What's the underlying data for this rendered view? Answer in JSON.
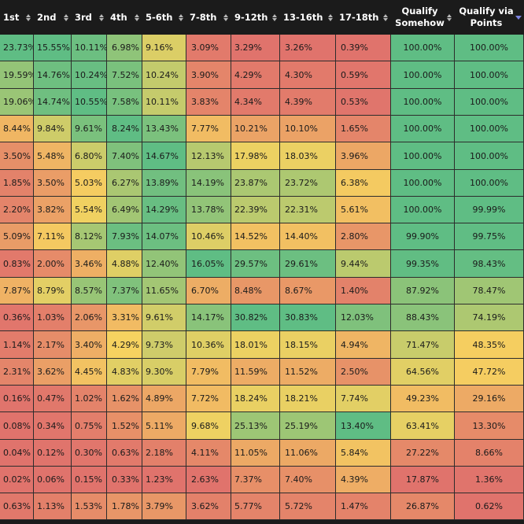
{
  "columns": [
    {
      "key": "1st",
      "label": "1st",
      "align": "left",
      "sort": "none"
    },
    {
      "key": "2nd",
      "label": "2nd",
      "align": "left",
      "sort": "none"
    },
    {
      "key": "3rd",
      "label": "3rd",
      "align": "left",
      "sort": "none"
    },
    {
      "key": "4th",
      "label": "4th",
      "align": "left",
      "sort": "none"
    },
    {
      "key": "5-6th",
      "label": "5-6th",
      "align": "left",
      "sort": "none"
    },
    {
      "key": "7-8th",
      "label": "7-8th",
      "align": "left",
      "sort": "none"
    },
    {
      "key": "9-12th",
      "label": "9-12th",
      "align": "left",
      "sort": "none"
    },
    {
      "key": "13-16th",
      "label": "13-16th",
      "align": "left",
      "sort": "none"
    },
    {
      "key": "17-18th",
      "label": "17-18th",
      "align": "left",
      "sort": "none"
    },
    {
      "key": "qualify-somehow",
      "label": "Qualify Somehow",
      "align": "center",
      "sort": "none"
    },
    {
      "key": "qualify-via-points",
      "label": "Qualify via Points",
      "align": "center",
      "sort": "desc"
    }
  ],
  "rows": [
    [
      "23.73%",
      "15.55%",
      "10.11%",
      "6.98%",
      "9.16%",
      "3.09%",
      "3.29%",
      "3.26%",
      "0.39%",
      "100.00%",
      "100.00%"
    ],
    [
      "19.59%",
      "14.76%",
      "10.24%",
      "7.52%",
      "10.24%",
      "3.90%",
      "4.29%",
      "4.30%",
      "0.59%",
      "100.00%",
      "100.00%"
    ],
    [
      "19.06%",
      "14.74%",
      "10.55%",
      "7.58%",
      "10.11%",
      "3.83%",
      "4.34%",
      "4.39%",
      "0.53%",
      "100.00%",
      "100.00%"
    ],
    [
      "8.44%",
      "9.84%",
      "9.61%",
      "8.24%",
      "13.43%",
      "7.77%",
      "10.21%",
      "10.10%",
      "1.65%",
      "100.00%",
      "100.00%"
    ],
    [
      "3.50%",
      "5.48%",
      "6.80%",
      "7.40%",
      "14.67%",
      "12.13%",
      "17.98%",
      "18.03%",
      "3.96%",
      "100.00%",
      "100.00%"
    ],
    [
      "1.85%",
      "3.50%",
      "5.03%",
      "6.27%",
      "13.89%",
      "14.19%",
      "23.87%",
      "23.72%",
      "6.38%",
      "100.00%",
      "100.00%"
    ],
    [
      "2.20%",
      "3.82%",
      "5.54%",
      "6.49%",
      "14.29%",
      "13.78%",
      "22.39%",
      "22.31%",
      "5.61%",
      "100.00%",
      "99.99%"
    ],
    [
      "5.09%",
      "7.11%",
      "8.12%",
      "7.93%",
      "14.07%",
      "10.46%",
      "14.52%",
      "14.40%",
      "2.80%",
      "99.90%",
      "99.75%"
    ],
    [
      "0.83%",
      "2.00%",
      "3.46%",
      "4.88%",
      "12.40%",
      "16.05%",
      "29.57%",
      "29.61%",
      "9.44%",
      "99.35%",
      "98.43%"
    ],
    [
      "7.87%",
      "8.79%",
      "8.57%",
      "7.37%",
      "11.65%",
      "6.70%",
      "8.48%",
      "8.67%",
      "1.40%",
      "87.92%",
      "78.47%"
    ],
    [
      "0.36%",
      "1.03%",
      "2.06%",
      "3.31%",
      "9.61%",
      "14.17%",
      "30.82%",
      "30.83%",
      "12.03%",
      "88.43%",
      "74.19%"
    ],
    [
      "1.14%",
      "2.17%",
      "3.40%",
      "4.29%",
      "9.73%",
      "10.36%",
      "18.01%",
      "18.15%",
      "4.94%",
      "71.47%",
      "48.35%"
    ],
    [
      "2.31%",
      "3.62%",
      "4.45%",
      "4.83%",
      "9.30%",
      "7.79%",
      "11.59%",
      "11.52%",
      "2.50%",
      "64.56%",
      "47.72%"
    ],
    [
      "0.16%",
      "0.47%",
      "1.02%",
      "1.62%",
      "4.89%",
      "7.72%",
      "18.24%",
      "18.21%",
      "7.74%",
      "49.23%",
      "29.16%"
    ],
    [
      "0.08%",
      "0.34%",
      "0.75%",
      "1.52%",
      "5.11%",
      "9.68%",
      "25.13%",
      "25.19%",
      "13.40%",
      "63.41%",
      "13.30%"
    ],
    [
      "0.04%",
      "0.12%",
      "0.30%",
      "0.63%",
      "2.18%",
      "4.11%",
      "11.05%",
      "11.06%",
      "5.84%",
      "27.22%",
      "8.66%"
    ],
    [
      "0.02%",
      "0.06%",
      "0.15%",
      "0.33%",
      "1.23%",
      "2.63%",
      "7.37%",
      "7.40%",
      "4.39%",
      "17.87%",
      "1.36%"
    ],
    [
      "0.63%",
      "1.13%",
      "1.53%",
      "1.78%",
      "3.79%",
      "3.62%",
      "5.77%",
      "5.72%",
      "1.47%",
      "26.87%",
      "0.62%"
    ]
  ],
  "colors": {
    "scale_low": "#e0736c",
    "scale_mid": "#f6d260",
    "scale_high": "#5fbd84",
    "header_bg": "#1b1b1b",
    "header_text": "#ffffff",
    "sort_active": "#7c83e0"
  }
}
